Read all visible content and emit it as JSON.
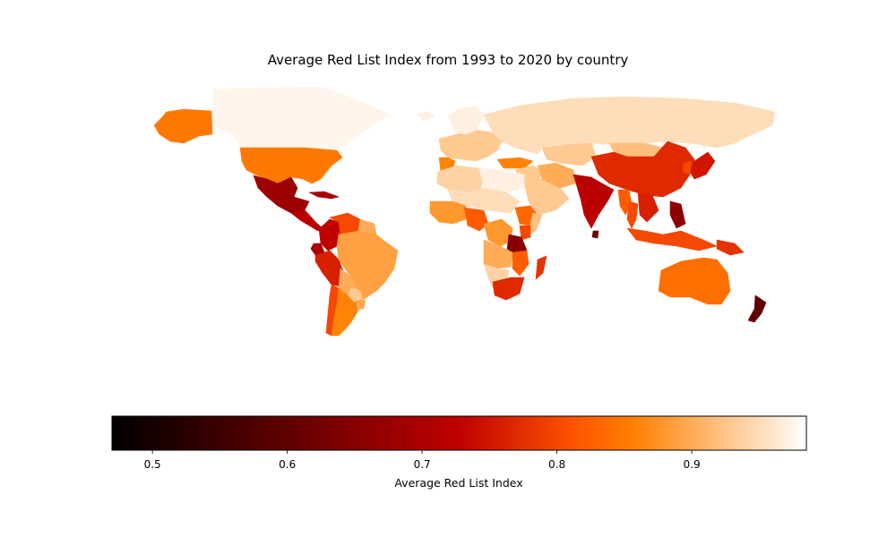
{
  "chart_data": {
    "type": "choropleth",
    "title": "Average Red List Index from 1993 to 2020 by country",
    "colormap": "gist_heat",
    "colorbar": {
      "label": "Average Red List Index",
      "range": [
        0.47,
        0.985
      ],
      "ticks": [
        0.5,
        0.6,
        0.7,
        0.8,
        0.9
      ],
      "tick_labels": [
        "0.5",
        "0.6",
        "0.7",
        "0.8",
        "0.9"
      ],
      "orientation": "horizontal"
    },
    "regions": [
      {
        "name": "Canada",
        "value": 0.975
      },
      {
        "name": "Greenland",
        "value": 0.985
      },
      {
        "name": "Alaska (USA)",
        "value": 0.85
      },
      {
        "name": "United States",
        "value": 0.85
      },
      {
        "name": "Mexico",
        "value": 0.68
      },
      {
        "name": "Central America",
        "value": 0.72
      },
      {
        "name": "Cuba",
        "value": 0.7
      },
      {
        "name": "Colombia",
        "value": 0.73
      },
      {
        "name": "Venezuela",
        "value": 0.8
      },
      {
        "name": "Guyana & Suriname",
        "value": 0.9
      },
      {
        "name": "Ecuador",
        "value": 0.7
      },
      {
        "name": "Peru",
        "value": 0.76
      },
      {
        "name": "Brazil",
        "value": 0.89
      },
      {
        "name": "Bolivia",
        "value": 0.9
      },
      {
        "name": "Paraguay",
        "value": 0.93
      },
      {
        "name": "Chile",
        "value": 0.8
      },
      {
        "name": "Argentina",
        "value": 0.86
      },
      {
        "name": "Uruguay",
        "value": 0.9
      },
      {
        "name": "Iceland",
        "value": 0.97
      },
      {
        "name": "Europe",
        "value": 0.93
      },
      {
        "name": "Scandinavia",
        "value": 0.97
      },
      {
        "name": "Spain & Portugal",
        "value": 0.86
      },
      {
        "name": "Russia",
        "value": 0.95
      },
      {
        "name": "Turkey",
        "value": 0.86
      },
      {
        "name": "Middle East",
        "value": 0.93
      },
      {
        "name": "Arabian Peninsula",
        "value": 0.93
      },
      {
        "name": "Iran",
        "value": 0.9
      },
      {
        "name": "Central Asia",
        "value": 0.93
      },
      {
        "name": "Kazakhstan",
        "value": 0.95
      },
      {
        "name": "Mongolia",
        "value": 0.92
      },
      {
        "name": "China",
        "value": 0.77
      },
      {
        "name": "India",
        "value": 0.72
      },
      {
        "name": "Sri Lanka",
        "value": 0.62
      },
      {
        "name": "Myanmar",
        "value": 0.82
      },
      {
        "name": "Thailand",
        "value": 0.8
      },
      {
        "name": "Indochina",
        "value": 0.76
      },
      {
        "name": "Philippines",
        "value": 0.66
      },
      {
        "name": "Japan",
        "value": 0.75
      },
      {
        "name": "Korea",
        "value": 0.8
      },
      {
        "name": "Indonesia",
        "value": 0.8
      },
      {
        "name": "Papua New Guinea",
        "value": 0.78
      },
      {
        "name": "Australia",
        "value": 0.84
      },
      {
        "name": "New Zealand",
        "value": 0.6
      },
      {
        "name": "North Africa",
        "value": 0.94
      },
      {
        "name": "Libya & Egypt",
        "value": 0.97
      },
      {
        "name": "Sahel",
        "value": 0.95
      },
      {
        "name": "West Africa",
        "value": 0.88
      },
      {
        "name": "Cameroon & Nigeria",
        "value": 0.82
      },
      {
        "name": "Central Africa",
        "value": 0.88
      },
      {
        "name": "Ethiopia",
        "value": 0.83
      },
      {
        "name": "Somalia",
        "value": 0.92
      },
      {
        "name": "Kenya",
        "value": 0.8
      },
      {
        "name": "Tanzania",
        "value": 0.65
      },
      {
        "name": "Angola & Zambia",
        "value": 0.9
      },
      {
        "name": "Mozambique",
        "value": 0.82
      },
      {
        "name": "Namibia & Botswana",
        "value": 0.94
      },
      {
        "name": "South Africa",
        "value": 0.77
      },
      {
        "name": "Madagascar",
        "value": 0.78
      }
    ]
  }
}
